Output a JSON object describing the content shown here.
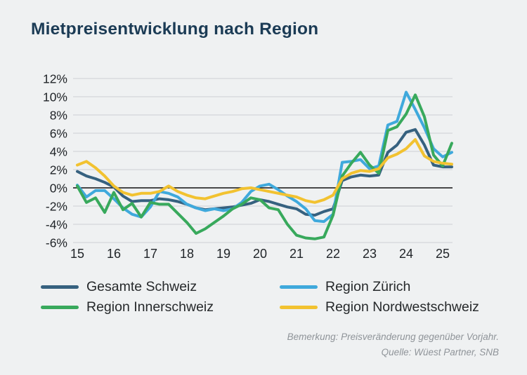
{
  "title": "Mietpreisentwicklung nach Region",
  "note": {
    "line1": "Bemerkung: Preisveränderung gegenüber Vorjahr.",
    "line2": "Quelle: Wüest Partner, SNB"
  },
  "colors": {
    "background": "#eff1f2",
    "title_text": "#1b3b55",
    "axis_text": "#1f2327",
    "gridline": "#dcdee1",
    "zero_line": "#111111",
    "note_text": "#8f9499",
    "legend_text": "#26292b"
  },
  "chart_data": {
    "type": "line",
    "title": "Mietpreisentwicklung nach Region",
    "xlabel": "",
    "ylabel": "",
    "x_start": 2015,
    "x_step": 0.25,
    "x_tick_labels": [
      "15",
      "16",
      "17",
      "18",
      "19",
      "20",
      "21",
      "22",
      "23",
      "24",
      "25"
    ],
    "x_tick_years": [
      2015,
      2016,
      2017,
      2018,
      2019,
      2020,
      2021,
      2022,
      2023,
      2024,
      2025
    ],
    "y_ticks": [
      12,
      10,
      8,
      6,
      4,
      2,
      0,
      -2,
      -4,
      -6
    ],
    "y_tick_labels": [
      "12%",
      "10%",
      "8%",
      "6%",
      "4%",
      "2%",
      "0%",
      "-2%",
      "-4%",
      "-6%"
    ],
    "ylim": [
      -7,
      13
    ],
    "grid": true,
    "legend_position": "bottom",
    "unit": "percent",
    "series": [
      {
        "name": "Gesamte Schweiz",
        "color": "#36617f",
        "values": [
          1.8,
          1.3,
          1.0,
          0.6,
          0.1,
          -0.9,
          -1.5,
          -1.4,
          -1.4,
          -1.2,
          -1.3,
          -1.5,
          -1.8,
          -2.2,
          -2.4,
          -2.3,
          -2.2,
          -2.1,
          -1.9,
          -1.7,
          -1.3,
          -1.5,
          -1.8,
          -2.1,
          -2.3,
          -2.9,
          -3.0,
          -2.6,
          -2.3,
          0.8,
          1.2,
          1.4,
          1.3,
          1.4,
          3.9,
          4.7,
          6.1,
          6.4,
          4.7,
          2.5,
          2.3,
          2.3
        ]
      },
      {
        "name": "Region Zürich",
        "color": "#3fa9dc",
        "values": [
          0.3,
          -1.0,
          -0.3,
          -0.3,
          -1.2,
          -2.2,
          -2.9,
          -3.2,
          -2.1,
          -0.4,
          -0.6,
          -1.0,
          -1.8,
          -2.2,
          -2.5,
          -2.3,
          -2.5,
          -2.3,
          -1.6,
          -0.4,
          0.2,
          0.4,
          -0.2,
          -0.9,
          -1.5,
          -2.3,
          -3.6,
          -3.7,
          -2.9,
          2.8,
          2.9,
          3.1,
          2.1,
          2.4,
          6.9,
          7.3,
          10.5,
          8.6,
          6.6,
          4.3,
          3.4,
          3.9
        ]
      },
      {
        "name": "Region Innerschweiz",
        "color": "#38a95c",
        "values": [
          0.2,
          -1.6,
          -1.1,
          -2.7,
          -0.5,
          -2.4,
          -1.7,
          -3.2,
          -1.6,
          -1.8,
          -1.8,
          -2.8,
          -3.8,
          -5.0,
          -4.5,
          -3.8,
          -3.1,
          -2.3,
          -1.8,
          -1.1,
          -1.3,
          -2.2,
          -2.4,
          -4.0,
          -5.2,
          -5.5,
          -5.6,
          -5.4,
          -3.0,
          1.3,
          2.7,
          3.9,
          2.5,
          1.6,
          6.3,
          6.7,
          8.1,
          10.2,
          7.8,
          3.6,
          2.4,
          4.9
        ]
      },
      {
        "name": "Region Nordwestschweiz",
        "color": "#f2c230",
        "values": [
          2.5,
          2.9,
          2.2,
          1.3,
          0.2,
          -0.5,
          -0.8,
          -0.6,
          -0.6,
          -0.4,
          0.2,
          -0.4,
          -0.8,
          -1.1,
          -1.2,
          -0.9,
          -0.6,
          -0.4,
          -0.1,
          0.0,
          -0.2,
          -0.4,
          -0.6,
          -0.8,
          -1.0,
          -1.4,
          -1.6,
          -1.3,
          -0.8,
          1.0,
          1.6,
          1.9,
          1.8,
          2.1,
          3.3,
          3.7,
          4.3,
          5.3,
          3.5,
          2.9,
          2.7,
          2.6
        ]
      }
    ]
  }
}
